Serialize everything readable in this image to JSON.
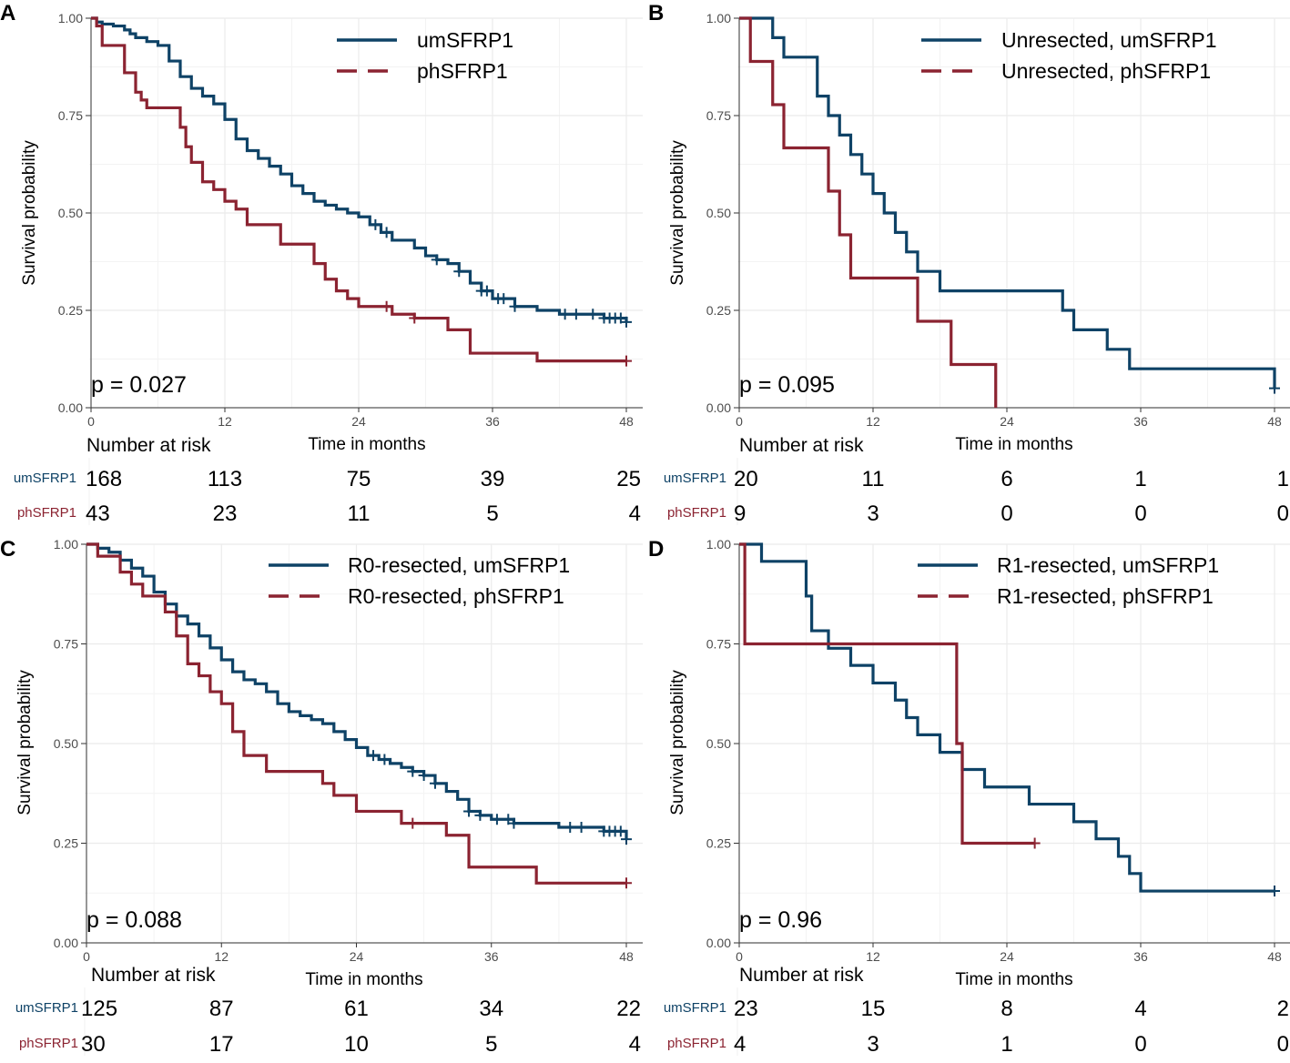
{
  "colors": {
    "um": "#0e4266",
    "ph": "#8b2331",
    "grid": "#ebebeb",
    "axis": "#333333",
    "text": "#4d4d4d"
  },
  "common": {
    "ylabel": "Survival probability",
    "xlabel": "Time in months",
    "risk_title": "Number at risk",
    "y_ticks": [
      "0.00",
      "0.25",
      "0.50",
      "0.75",
      "1.00"
    ],
    "x_ticks": [
      "0",
      "12",
      "24",
      "36",
      "48"
    ],
    "risk_labels": [
      "umSFRP1",
      "phSFRP1"
    ]
  },
  "chart_data": [
    {
      "panel": "A",
      "type": "line",
      "subtype": "kaplan-meier-step",
      "xlabel": "Time in months",
      "ylabel": "Survival probability",
      "xlim": [
        0,
        48
      ],
      "ylim": [
        0,
        1
      ],
      "p_value": "p = 0.027",
      "series": [
        {
          "name": "umSFRP1",
          "x": [
            0,
            0.5,
            1,
            2,
            3,
            3.5,
            4,
            5,
            6,
            7,
            8,
            9,
            10,
            11,
            12,
            13,
            14,
            15,
            16,
            17,
            18,
            19,
            20,
            21,
            22,
            23,
            24,
            25,
            26,
            27,
            28,
            29,
            30,
            31,
            32,
            33,
            34,
            35,
            36,
            38,
            40,
            42,
            44,
            46,
            48
          ],
          "y": [
            1.0,
            0.99,
            0.985,
            0.98,
            0.97,
            0.96,
            0.95,
            0.94,
            0.93,
            0.89,
            0.85,
            0.82,
            0.8,
            0.78,
            0.74,
            0.69,
            0.66,
            0.64,
            0.62,
            0.6,
            0.57,
            0.55,
            0.53,
            0.52,
            0.51,
            0.5,
            0.49,
            0.47,
            0.45,
            0.43,
            0.43,
            0.41,
            0.39,
            0.38,
            0.37,
            0.35,
            0.32,
            0.3,
            0.28,
            0.26,
            0.25,
            0.24,
            0.24,
            0.23,
            0.22
          ],
          "censor_x": [
            25.5,
            26.5,
            31,
            33,
            35,
            35.5,
            36.5,
            37,
            38,
            42.5,
            43.5,
            45,
            46,
            46.5,
            47,
            47.5,
            48
          ]
        },
        {
          "name": "phSFRP1",
          "x": [
            0,
            0.5,
            1,
            3,
            4,
            4.5,
            5,
            6,
            7,
            8,
            8.5,
            9,
            10,
            11,
            12,
            13,
            14,
            16,
            17,
            18,
            19,
            20,
            21,
            22,
            23,
            24,
            26,
            27,
            28,
            29,
            30,
            32,
            34,
            36,
            40,
            48
          ],
          "y": [
            1.0,
            0.98,
            0.93,
            0.86,
            0.81,
            0.79,
            0.77,
            0.77,
            0.77,
            0.72,
            0.67,
            0.63,
            0.58,
            0.56,
            0.53,
            0.51,
            0.47,
            0.47,
            0.42,
            0.42,
            0.42,
            0.37,
            0.33,
            0.3,
            0.28,
            0.26,
            0.26,
            0.24,
            0.24,
            0.23,
            0.23,
            0.2,
            0.14,
            0.14,
            0.12,
            0.12
          ],
          "censor_x": [
            26.5,
            29,
            48
          ]
        }
      ],
      "risk_table": {
        "x": [
          0,
          12,
          24,
          36,
          48
        ],
        "umSFRP1": [
          "168",
          "113",
          "75",
          "39",
          "25"
        ],
        "phSFRP1": [
          "43",
          "23",
          "11",
          "5",
          "4"
        ]
      }
    },
    {
      "panel": "B",
      "type": "line",
      "subtype": "kaplan-meier-step",
      "xlabel": "Time in months",
      "ylabel": "Survival probability",
      "xlim": [
        0,
        48
      ],
      "ylim": [
        0,
        1
      ],
      "p_value": "p = 0.095",
      "series": [
        {
          "name": "Unresected, umSFRP1",
          "x": [
            0,
            3,
            4,
            6,
            7,
            8,
            9,
            10,
            11,
            12,
            13,
            14,
            15,
            16,
            18,
            26,
            29,
            30,
            33,
            35,
            48
          ],
          "y": [
            1.0,
            0.95,
            0.9,
            0.9,
            0.8,
            0.75,
            0.7,
            0.65,
            0.6,
            0.55,
            0.5,
            0.45,
            0.4,
            0.35,
            0.3,
            0.3,
            0.25,
            0.2,
            0.15,
            0.1,
            0.05
          ],
          "censor_x": [
            48
          ]
        },
        {
          "name": "Unresected, phSFRP1",
          "x": [
            0,
            1,
            3,
            4,
            8,
            9,
            10,
            16,
            19,
            23
          ],
          "y": [
            1.0,
            0.889,
            0.778,
            0.667,
            0.556,
            0.444,
            0.333,
            0.222,
            0.111,
            0.0
          ],
          "censor_x": []
        }
      ],
      "risk_table": {
        "x": [
          0,
          12,
          24,
          36,
          48
        ],
        "umSFRP1": [
          "20",
          "11",
          "6",
          "1",
          "1"
        ],
        "phSFRP1": [
          "9",
          "3",
          "0",
          "0",
          "0"
        ]
      }
    },
    {
      "panel": "C",
      "type": "line",
      "subtype": "kaplan-meier-step",
      "xlabel": "Time in months",
      "ylabel": "Survival probability",
      "xlim": [
        0,
        48
      ],
      "ylim": [
        0,
        1
      ],
      "p_value": "p = 0.088",
      "series": [
        {
          "name": "R0-resected, umSFRP1",
          "x": [
            0,
            1,
            2,
            3,
            4,
            5,
            6,
            7,
            8,
            9,
            10,
            11,
            12,
            13,
            14,
            15,
            16,
            17,
            18,
            19,
            20,
            21,
            22,
            23,
            24,
            25,
            26,
            27,
            28,
            29,
            30,
            31,
            32,
            33,
            34,
            35,
            36,
            38,
            40,
            42,
            44,
            46,
            48
          ],
          "y": [
            1.0,
            0.99,
            0.98,
            0.96,
            0.94,
            0.92,
            0.88,
            0.85,
            0.82,
            0.8,
            0.77,
            0.74,
            0.71,
            0.68,
            0.66,
            0.65,
            0.63,
            0.6,
            0.58,
            0.57,
            0.56,
            0.55,
            0.53,
            0.51,
            0.49,
            0.47,
            0.46,
            0.45,
            0.44,
            0.43,
            0.42,
            0.4,
            0.38,
            0.36,
            0.33,
            0.32,
            0.31,
            0.3,
            0.3,
            0.29,
            0.29,
            0.28,
            0.26
          ],
          "censor_x": [
            25.5,
            26.5,
            29,
            30,
            31,
            34,
            35,
            36.5,
            37.5,
            38,
            43,
            44,
            46,
            46.5,
            47,
            47.5,
            48
          ]
        },
        {
          "name": "R0-resected, phSFRP1",
          "x": [
            0,
            1,
            3,
            4,
            5,
            7,
            8,
            9,
            10,
            11,
            12,
            13,
            14,
            16,
            18,
            20,
            21,
            22,
            24,
            26,
            28,
            30,
            32,
            34,
            36,
            40,
            48
          ],
          "y": [
            1.0,
            0.97,
            0.93,
            0.9,
            0.87,
            0.83,
            0.77,
            0.7,
            0.67,
            0.63,
            0.6,
            0.53,
            0.47,
            0.43,
            0.43,
            0.43,
            0.4,
            0.37,
            0.33,
            0.33,
            0.3,
            0.3,
            0.27,
            0.19,
            0.19,
            0.15,
            0.15
          ],
          "censor_x": [
            29,
            48
          ]
        }
      ],
      "risk_table": {
        "x": [
          0,
          12,
          24,
          36,
          48
        ],
        "umSFRP1": [
          "125",
          "87",
          "61",
          "34",
          "22"
        ],
        "phSFRP1": [
          "30",
          "17",
          "10",
          "5",
          "4"
        ]
      }
    },
    {
      "panel": "D",
      "type": "line",
      "subtype": "kaplan-meier-step",
      "xlabel": "Time in months",
      "ylabel": "Survival probability",
      "xlim": [
        0,
        48
      ],
      "ylim": [
        0,
        1
      ],
      "p_value": "p = 0.96",
      "series": [
        {
          "name": "R1-resected, umSFRP1",
          "x": [
            0,
            2,
            6,
            6.5,
            8,
            10,
            12,
            14,
            15,
            16,
            18,
            20,
            22,
            26,
            30,
            32,
            34,
            35,
            36,
            48
          ],
          "y": [
            1.0,
            0.957,
            0.87,
            0.783,
            0.739,
            0.696,
            0.652,
            0.609,
            0.565,
            0.522,
            0.478,
            0.435,
            0.391,
            0.348,
            0.304,
            0.261,
            0.217,
            0.174,
            0.13,
            0.13
          ],
          "censor_x": [
            48
          ]
        },
        {
          "name": "R1-resected, phSFRP1",
          "x": [
            0,
            0.5,
            19.5,
            20,
            26.5
          ],
          "y": [
            1.0,
            0.75,
            0.5,
            0.25,
            0.25
          ],
          "censor_x": [
            26.5
          ]
        }
      ],
      "risk_table": {
        "x": [
          0,
          12,
          24,
          36,
          48
        ],
        "umSFRP1": [
          "23",
          "15",
          "8",
          "4",
          "2"
        ],
        "phSFRP1": [
          "4",
          "3",
          "1",
          "0",
          "0"
        ]
      }
    }
  ]
}
